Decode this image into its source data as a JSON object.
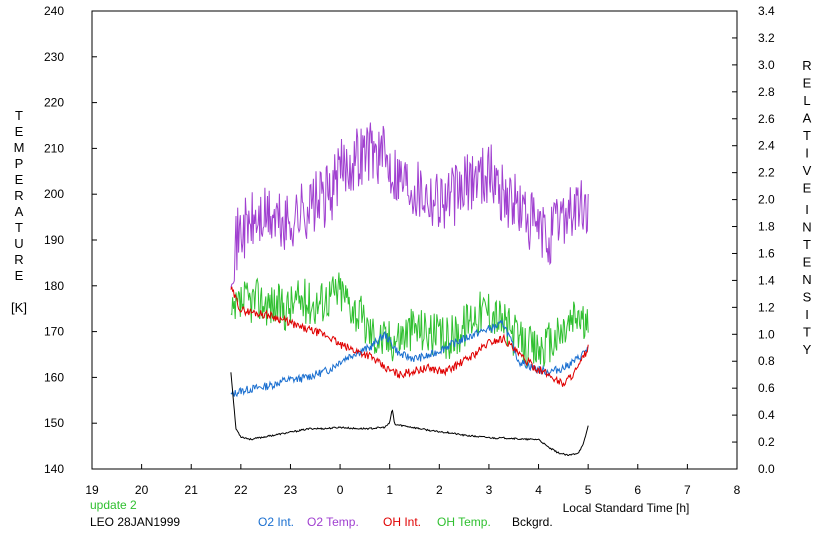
{
  "chart_data": {
    "type": "line",
    "xlabel": "Local Standard Time [h]",
    "left_axis": {
      "label_letters": [
        "T",
        "E",
        "M",
        "P",
        "E",
        "R",
        "A",
        "T",
        "U",
        "R",
        "E"
      ],
      "unit": "[K]",
      "range": [
        140,
        240
      ],
      "ticks": [
        "140",
        "150",
        "160",
        "170",
        "180",
        "190",
        "200",
        "210",
        "220",
        "230",
        "240"
      ]
    },
    "right_axis": {
      "label_letters_1": [
        "R",
        "E",
        "L",
        "A",
        "T",
        "I",
        "V",
        "E"
      ],
      "label_letters_2": [
        "I",
        "N",
        "T",
        "E",
        "N",
        "S",
        "I",
        "T",
        "Y"
      ],
      "range": [
        0.0,
        3.4
      ],
      "ticks": [
        "0.0",
        "0.2",
        "0.4",
        "0.6",
        "0.8",
        "1.0",
        "1.2",
        "1.4",
        "1.6",
        "1.8",
        "2.0",
        "2.2",
        "2.4",
        "2.6",
        "2.8",
        "3.0",
        "3.2",
        "3.4"
      ]
    },
    "x_axis": {
      "range": [
        19,
        32
      ],
      "ticks": [
        "19",
        "20",
        "21",
        "22",
        "23",
        "0",
        "1",
        "2",
        "3",
        "4",
        "5",
        "6",
        "7",
        "8"
      ]
    },
    "annotations": {
      "update": "update 2",
      "station": "LEO 28JAN1999"
    },
    "legend": [
      {
        "name": "O2 Int.",
        "color": "#1a6fd0"
      },
      {
        "name": "O2 Temp.",
        "color": "#a040d0"
      },
      {
        "name": "OH Int.",
        "color": "#e00000"
      },
      {
        "name": "OH Temp.",
        "color": "#30c030"
      },
      {
        "name": "Bckgrd.",
        "color": "#000000"
      }
    ],
    "series": [
      {
        "name": "O2 Temp.",
        "axis": "left",
        "color": "#a040d0",
        "x": [
          21.8,
          22.0,
          22.3,
          22.6,
          22.9,
          23.2,
          23.5,
          23.8,
          24.0,
          24.3,
          24.6,
          24.9,
          25.2,
          25.5,
          25.8,
          26.1,
          26.4,
          26.7,
          27.0,
          27.3,
          27.6,
          27.9,
          28.2,
          28.5,
          28.8,
          29.0
        ],
        "y": [
          186,
          192,
          194,
          195,
          193,
          196,
          198,
          200,
          205,
          208,
          210,
          208,
          204,
          202,
          200,
          199,
          200,
          204,
          205,
          200,
          197,
          193,
          190,
          196,
          197,
          196
        ]
      },
      {
        "name": "OH Temp.",
        "axis": "left",
        "color": "#30c030",
        "x": [
          21.8,
          22.0,
          22.3,
          22.6,
          22.9,
          23.2,
          23.5,
          23.8,
          24.0,
          24.3,
          24.6,
          24.9,
          25.2,
          25.5,
          25.8,
          26.1,
          26.4,
          26.7,
          27.0,
          27.3,
          27.6,
          27.9,
          28.2,
          28.5,
          28.8,
          29.0
        ],
        "y": [
          172,
          176,
          177,
          176,
          175,
          177,
          176,
          178,
          179,
          175,
          170,
          168,
          169,
          171,
          170,
          168,
          170,
          174,
          175,
          172,
          168,
          166,
          167,
          170,
          174,
          170
        ]
      },
      {
        "name": "O2 Int.",
        "axis": "right",
        "color": "#1a6fd0",
        "x": [
          21.8,
          22.0,
          22.3,
          22.6,
          22.9,
          23.2,
          23.5,
          23.8,
          24.0,
          24.3,
          24.6,
          24.9,
          25.2,
          25.5,
          25.8,
          26.1,
          26.4,
          26.7,
          27.0,
          27.3,
          27.6,
          27.9,
          28.2,
          28.5,
          28.8,
          29.0
        ],
        "y": [
          0.55,
          0.58,
          0.6,
          0.62,
          0.66,
          0.67,
          0.7,
          0.74,
          0.8,
          0.86,
          0.9,
          1.0,
          0.85,
          0.82,
          0.84,
          0.9,
          0.95,
          1.0,
          1.04,
          1.08,
          0.8,
          0.75,
          0.72,
          0.75,
          0.82,
          0.9
        ]
      },
      {
        "name": "OH Int.",
        "axis": "right",
        "color": "#e00000",
        "x": [
          21.8,
          22.0,
          22.3,
          22.6,
          22.9,
          23.2,
          23.5,
          23.8,
          24.0,
          24.3,
          24.6,
          24.9,
          25.2,
          25.5,
          25.8,
          26.1,
          26.4,
          26.7,
          27.0,
          27.3,
          27.6,
          27.9,
          28.2,
          28.5,
          28.8,
          29.0
        ],
        "y": [
          1.34,
          1.18,
          1.16,
          1.14,
          1.1,
          1.05,
          1.02,
          0.98,
          0.92,
          0.88,
          0.84,
          0.75,
          0.7,
          0.73,
          0.75,
          0.72,
          0.78,
          0.85,
          0.94,
          0.97,
          0.85,
          0.76,
          0.7,
          0.63,
          0.75,
          0.9
        ]
      },
      {
        "name": "Bckgrd.",
        "axis": "right",
        "color": "#000000",
        "x": [
          21.8,
          21.9,
          22.0,
          22.2,
          22.5,
          22.8,
          23.1,
          23.4,
          23.7,
          24.0,
          24.3,
          24.6,
          24.9,
          25.0,
          25.05,
          25.1,
          25.3,
          25.6,
          25.9,
          26.2,
          26.5,
          26.8,
          27.1,
          27.4,
          27.7,
          28.0,
          28.2,
          28.4,
          28.6,
          28.8,
          28.9,
          29.0
        ],
        "y": [
          0.72,
          0.3,
          0.24,
          0.22,
          0.24,
          0.26,
          0.28,
          0.3,
          0.3,
          0.31,
          0.3,
          0.3,
          0.31,
          0.34,
          0.45,
          0.33,
          0.32,
          0.3,
          0.28,
          0.27,
          0.25,
          0.24,
          0.23,
          0.23,
          0.22,
          0.22,
          0.16,
          0.12,
          0.1,
          0.12,
          0.18,
          0.32
        ]
      }
    ]
  }
}
